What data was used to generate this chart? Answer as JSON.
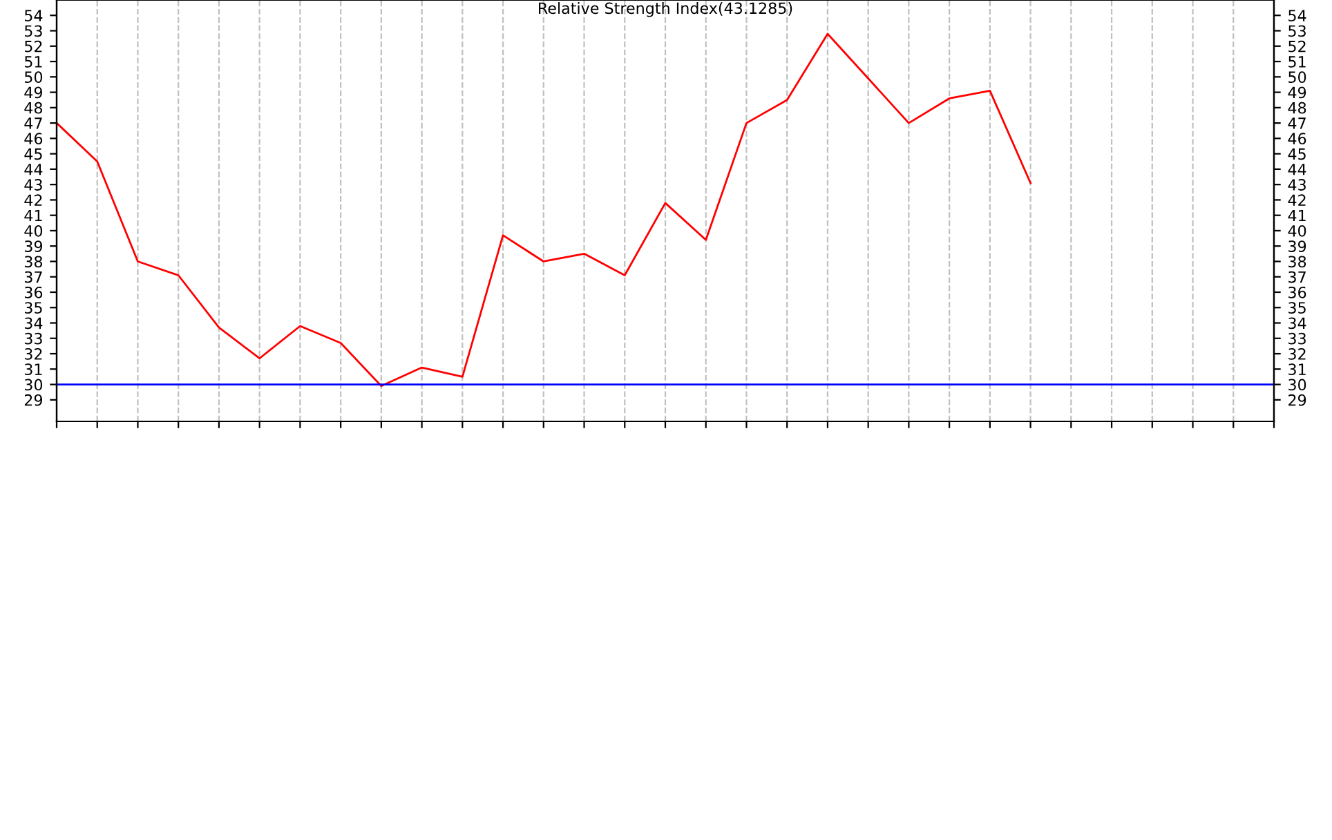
{
  "chart_data": {
    "type": "line",
    "title": "Relative Strength Index(43.1285)",
    "categories": [
      null,
      null,
      null,
      null,
      null,
      null,
      null,
      null,
      null,
      null,
      null,
      null,
      null,
      null,
      null,
      null,
      null,
      null,
      null,
      null,
      null,
      null,
      null,
      null,
      null,
      null,
      null,
      null,
      null,
      null,
      null
    ],
    "series": [
      {
        "color": "#ff0000",
        "values": [
          47.0,
          44.5,
          38.0,
          37.1,
          33.7,
          31.7,
          33.8,
          32.7,
          29.9,
          31.1,
          30.5,
          39.7,
          38.0,
          38.5,
          37.1,
          41.8,
          39.4,
          47.0,
          48.5,
          52.8,
          49.9,
          47.0,
          48.6,
          49.1,
          43.1,
          null,
          null,
          null,
          null,
          null,
          null
        ]
      }
    ],
    "ylim": [
      27.6,
      55
    ],
    "yticks": [
      29,
      30,
      31,
      32,
      33,
      34,
      35,
      36,
      37,
      38,
      39,
      40,
      41,
      42,
      43,
      44,
      45,
      46,
      47,
      48,
      49,
      50,
      51,
      52,
      53,
      54
    ],
    "y2lim": [
      27.6,
      55
    ],
    "y2ticks": [
      29,
      30,
      31,
      32,
      33,
      34,
      35,
      36,
      37,
      38,
      39,
      40,
      41,
      42,
      43,
      44,
      45,
      46,
      47,
      48,
      49,
      50,
      51,
      52,
      53,
      54
    ],
    "ref_lines": [
      {
        "axis": "y",
        "value": 30,
        "label": null,
        "color": "#0000ff"
      }
    ],
    "grid": "x",
    "legend": false,
    "marker": "none",
    "line_style": "solid"
  }
}
